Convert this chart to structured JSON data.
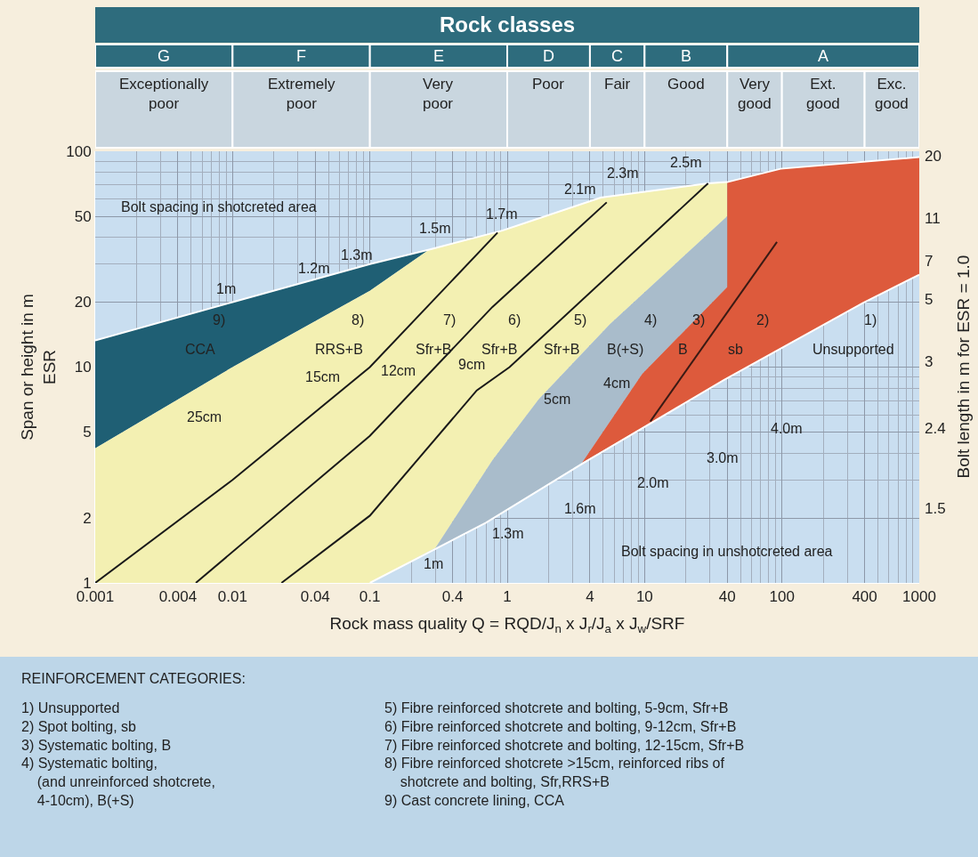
{
  "chart_data": {
    "type": "area",
    "title": "Rock classes",
    "xlabel": "Rock mass quality Q = RQD/J$_{n}$ x J$_{r}$/J$_{a}$ x J$_{w}$/SRF",
    "ylabel": "Span or height in m\nESR",
    "y2label": "Bolt length in m for ESR = 1.0",
    "log": "xy",
    "grid": true,
    "xlim": [
      0.001,
      1000
    ],
    "xticks": [
      0.001,
      0.004,
      0.01,
      0.04,
      0.1,
      0.4,
      1,
      4,
      10,
      40,
      100,
      400,
      1000
    ],
    "ylim": [
      1,
      100
    ],
    "yticks": [
      1,
      2,
      5,
      10,
      20,
      50,
      100
    ],
    "series": [
      {
        "color": "#1f5f74",
        "x": [
          0.001,
          0.01,
          0.1,
          0.27,
          0.1,
          0.01,
          0.001
        ],
        "values": [
          13.3,
          20,
          30,
          35,
          22.6,
          10,
          4.2
        ]
      },
      {
        "color": "#f3f0b2",
        "x": [
          0.1,
          0.3,
          0.78,
          1.7,
          5.6,
          40,
          40,
          29,
          4.8,
          0.93,
          0.27,
          0.1,
          0.01,
          0.001,
          0.001
        ],
        "values": [
          1,
          1.45,
          3.7,
          7.1,
          15.8,
          50,
          72,
          71,
          61,
          43,
          35,
          22.6,
          10,
          4.2,
          1
        ]
      },
      {
        "color": "#a9bccb",
        "x": [
          0.1,
          0.3,
          0.78,
          1.7,
          5.6,
          40,
          40,
          9.6,
          3.5,
          0.7
        ],
        "values": [
          1,
          1.45,
          3.7,
          7.1,
          15.8,
          50,
          23.5,
          9.3,
          3.6,
          1.9
        ]
      },
      {
        "color": "#dd5a3c",
        "x": [
          3.5,
          9.6,
          40,
          40,
          98,
          1000,
          1000,
          387,
          37.7
        ],
        "values": [
          3.6,
          9.3,
          23.5,
          72,
          83,
          94,
          26.8,
          19.8,
          8.7
        ]
      },
      {
        "type": "line",
        "color": "#ffffff",
        "x": [
          0.1,
          0.7,
          3.6,
          37.7,
          387,
          1000
        ],
        "values": [
          1,
          1.9,
          3.6,
          8.7,
          19.8,
          26.8
        ]
      },
      {
        "type": "line",
        "color": "#ffffff",
        "x": [
          0.001,
          0.01,
          0.1,
          0.27,
          0.93,
          4.8,
          29,
          40,
          98,
          1000
        ],
        "values": [
          13.3,
          20,
          30,
          35,
          43,
          61,
          71,
          72,
          83,
          94
        ]
      },
      {
        "type": "line",
        "color": "#1a1a1a",
        "x": [
          0.001,
          0.01,
          0.1,
          0.85
        ],
        "values": [
          1,
          3,
          10,
          42
        ]
      },
      {
        "type": "line",
        "color": "#1a1a1a",
        "x": [
          0.0054,
          0.1,
          0.78,
          5.3
        ],
        "values": [
          1,
          4.8,
          19,
          58
        ]
      },
      {
        "type": "line",
        "color": "#1a1a1a",
        "x": [
          0.0227,
          0.1,
          0.6,
          1.04,
          29
        ],
        "values": [
          1,
          2.05,
          7.8,
          10,
          71
        ]
      },
      {
        "type": "line",
        "color": "#3a1a14",
        "x": [
          11,
          92
        ],
        "values": [
          5.6,
          38
        ]
      }
    ],
    "annotations": [
      "9)",
      "CCA",
      "8)",
      "RRS+B",
      "7)",
      "Sfr+B",
      "6)",
      "Sfr+B",
      "5)",
      "Sfr+B",
      "4)",
      "B(+S)",
      "3)",
      "B",
      "2)",
      "sb",
      "1)",
      "Unsupported",
      "25cm",
      "15cm",
      "12cm",
      "9cm",
      "5cm",
      "4cm",
      "1m",
      "1.2m",
      "1.3m",
      "1.5m",
      "1.7m",
      "2.1m",
      "2.3m",
      "2.5m",
      "1m",
      "1.3m",
      "1.6m",
      "2.0m",
      "3.0m",
      "4.0m",
      "Bolt spacing in shotcreted area",
      "Bolt spacing in unshotcreted area",
      "20",
      "11",
      "7",
      "5",
      "3",
      "2.4",
      "1.5",
      "G",
      "F",
      "E",
      "D",
      "C",
      "B",
      "A",
      "Exceptionally\npoor",
      "Extremely\npoor",
      "Very\npoor",
      "Poor",
      "Fair",
      "Good",
      "Very\ngood",
      "Ext.\ngood",
      "Exc.\ngood",
      "REINFORCEMENT CATEGORIES:",
      "1) Unsupported",
      "2) Spot bolting, sb",
      "3) Systematic bolting, B",
      "4) Systematic bolting,\n    (and unreinforced shotcrete,\n    4-10cm), B(+S)",
      "5) Fibre reinforced shotcrete and bolting, 5-9cm, Sfr+B",
      "6) Fibre reinforced shotcrete and bolting, 9-12cm, Sfr+B",
      "7) Fibre reinforced shotcrete and bolting, 12-15cm, Sfr+B",
      "8) Fibre reinforced shotcrete >15cm, reinforced ribs of\n    shotcrete and bolting, Sfr,RRS+B",
      "9) Cast concrete lining, CCA"
    ]
  }
}
